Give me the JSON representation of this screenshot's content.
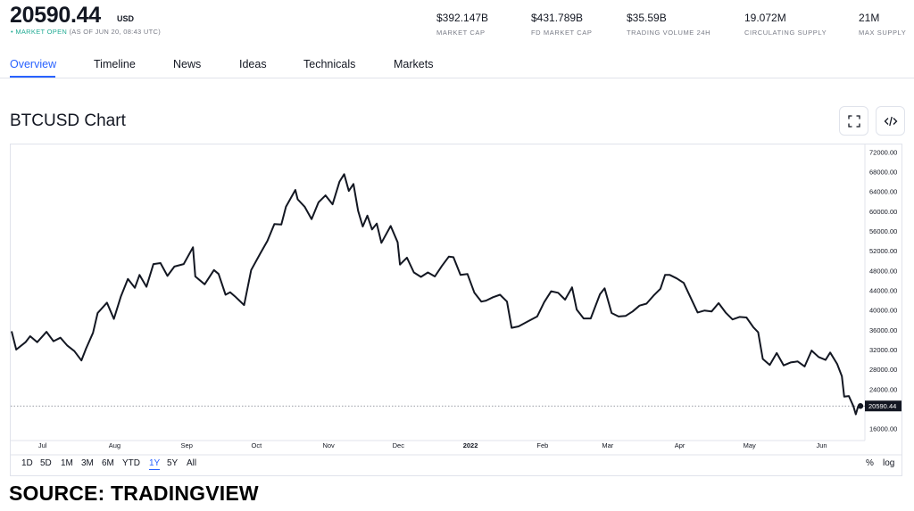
{
  "header": {
    "price": "20590.44",
    "currency": "USD",
    "market_status": "MARKET OPEN",
    "as_of": "(AS OF JUN 20, 08:43 UTC)"
  },
  "stats": [
    {
      "value": "$392.147B",
      "label": "MARKET CAP"
    },
    {
      "value": "$431.789B",
      "label": "FD MARKET CAP"
    },
    {
      "value": "$35.59B",
      "label": "TRADING VOLUME 24H"
    },
    {
      "value": "19.072M",
      "label": "CIRCULATING SUPPLY"
    },
    {
      "value": "21M",
      "label": "MAX SUPPLY"
    }
  ],
  "tabs": [
    "Overview",
    "Timeline",
    "News",
    "Ideas",
    "Technicals",
    "Markets"
  ],
  "chart_title": "BTCUSD Chart",
  "ranges": [
    "1D",
    "5D",
    "1M",
    "3M",
    "6M",
    "YTD",
    "1Y",
    "5Y",
    "All"
  ],
  "active_range": "1Y",
  "options": {
    "percent": "%",
    "log": "log"
  },
  "source": "SOURCE: TRADINGVIEW",
  "colors": {
    "accent": "#2962ff",
    "market_open": "#22ab94",
    "line": "#131722"
  },
  "chart_data": {
    "type": "line",
    "title": "BTCUSD Chart",
    "x_labels": [
      "Jul",
      "Aug",
      "Sep",
      "Oct",
      "Nov",
      "Dec",
      "2022",
      "Feb",
      "Mar",
      "Apr",
      "May",
      "Jun"
    ],
    "y_ticks": [
      "72000.00",
      "68000.00",
      "64000.00",
      "60000.00",
      "56000.00",
      "52000.00",
      "48000.00",
      "44000.00",
      "40000.00",
      "36000.00",
      "32000.00",
      "28000.00",
      "24000.00",
      "16000.00"
    ],
    "ylim": [
      14500,
      73500
    ],
    "last_value_label": "20590.44",
    "last_value": 20590.44,
    "x_range": [
      "2021-06-20",
      "2022-06-20"
    ],
    "series": [
      {
        "name": "BTCUSD",
        "points": [
          [
            "2021-06-20",
            35700
          ],
          [
            "2021-06-22",
            32000
          ],
          [
            "2021-06-26",
            33500
          ],
          [
            "2021-06-28",
            34700
          ],
          [
            "2021-07-01",
            33500
          ],
          [
            "2021-07-05",
            35600
          ],
          [
            "2021-07-08",
            33700
          ],
          [
            "2021-07-11",
            34400
          ],
          [
            "2021-07-14",
            32800
          ],
          [
            "2021-07-17",
            31700
          ],
          [
            "2021-07-20",
            29800
          ],
          [
            "2021-07-22",
            32200
          ],
          [
            "2021-07-25",
            35400
          ],
          [
            "2021-07-27",
            39400
          ],
          [
            "2021-07-31",
            41500
          ],
          [
            "2021-08-03",
            38200
          ],
          [
            "2021-08-06",
            42800
          ],
          [
            "2021-08-09",
            46300
          ],
          [
            "2021-08-12",
            44500
          ],
          [
            "2021-08-14",
            47100
          ],
          [
            "2021-08-17",
            44700
          ],
          [
            "2021-08-20",
            49300
          ],
          [
            "2021-08-23",
            49500
          ],
          [
            "2021-08-26",
            46900
          ],
          [
            "2021-08-29",
            48800
          ],
          [
            "2021-09-02",
            49300
          ],
          [
            "2021-09-06",
            52700
          ],
          [
            "2021-09-07",
            46800
          ],
          [
            "2021-09-11",
            45200
          ],
          [
            "2021-09-15",
            48100
          ],
          [
            "2021-09-17",
            47300
          ],
          [
            "2021-09-20",
            43100
          ],
          [
            "2021-09-22",
            43600
          ],
          [
            "2021-09-24",
            42800
          ],
          [
            "2021-09-28",
            41000
          ],
          [
            "2021-10-01",
            48100
          ],
          [
            "2021-10-05",
            51500
          ],
          [
            "2021-10-08",
            54000
          ],
          [
            "2021-10-11",
            57400
          ],
          [
            "2021-10-14",
            57300
          ],
          [
            "2021-10-16",
            60900
          ],
          [
            "2021-10-20",
            64300
          ],
          [
            "2021-10-21",
            62400
          ],
          [
            "2021-10-24",
            60900
          ],
          [
            "2021-10-27",
            58400
          ],
          [
            "2021-10-30",
            61800
          ],
          [
            "2021-11-02",
            63200
          ],
          [
            "2021-11-05",
            61400
          ],
          [
            "2021-11-08",
            66000
          ],
          [
            "2021-11-10",
            67500
          ],
          [
            "2021-11-12",
            64100
          ],
          [
            "2021-11-14",
            65500
          ],
          [
            "2021-11-16",
            60100
          ],
          [
            "2021-11-18",
            56900
          ],
          [
            "2021-11-20",
            59100
          ],
          [
            "2021-11-22",
            56300
          ],
          [
            "2021-11-24",
            57500
          ],
          [
            "2021-11-26",
            53600
          ],
          [
            "2021-11-30",
            57000
          ],
          [
            "2021-12-03",
            53700
          ],
          [
            "2021-12-04",
            49200
          ],
          [
            "2021-12-07",
            50600
          ],
          [
            "2021-12-10",
            47600
          ],
          [
            "2021-12-13",
            46700
          ],
          [
            "2021-12-16",
            47600
          ],
          [
            "2021-12-19",
            46800
          ],
          [
            "2021-12-22",
            48900
          ],
          [
            "2021-12-25",
            50800
          ],
          [
            "2021-12-27",
            50700
          ],
          [
            "2021-12-30",
            47100
          ],
          [
            "2022-01-02",
            47300
          ],
          [
            "2022-01-05",
            43500
          ],
          [
            "2022-01-08",
            41700
          ],
          [
            "2022-01-10",
            41900
          ],
          [
            "2022-01-13",
            42600
          ],
          [
            "2022-01-16",
            43100
          ],
          [
            "2022-01-19",
            41700
          ],
          [
            "2022-01-21",
            36400
          ],
          [
            "2022-01-24",
            36700
          ],
          [
            "2022-01-28",
            37700
          ],
          [
            "2022-02-01",
            38700
          ],
          [
            "2022-02-04",
            41600
          ],
          [
            "2022-02-07",
            43800
          ],
          [
            "2022-02-10",
            43500
          ],
          [
            "2022-02-13",
            42100
          ],
          [
            "2022-02-16",
            44600
          ],
          [
            "2022-02-18",
            40100
          ],
          [
            "2022-02-21",
            38300
          ],
          [
            "2022-02-24",
            38300
          ],
          [
            "2022-02-28",
            43200
          ],
          [
            "2022-03-02",
            44400
          ],
          [
            "2022-03-05",
            39400
          ],
          [
            "2022-03-08",
            38700
          ],
          [
            "2022-03-11",
            38800
          ],
          [
            "2022-03-14",
            39700
          ],
          [
            "2022-03-17",
            40900
          ],
          [
            "2022-03-20",
            41300
          ],
          [
            "2022-03-23",
            42900
          ],
          [
            "2022-03-26",
            44300
          ],
          [
            "2022-03-28",
            47100
          ],
          [
            "2022-03-30",
            47100
          ],
          [
            "2022-04-02",
            46400
          ],
          [
            "2022-04-05",
            45500
          ],
          [
            "2022-04-07",
            43500
          ],
          [
            "2022-04-11",
            39500
          ],
          [
            "2022-04-14",
            39900
          ],
          [
            "2022-04-17",
            39700
          ],
          [
            "2022-04-20",
            41400
          ],
          [
            "2022-04-23",
            39500
          ],
          [
            "2022-04-26",
            38100
          ],
          [
            "2022-04-29",
            38600
          ],
          [
            "2022-05-02",
            38500
          ],
          [
            "2022-05-05",
            36500
          ],
          [
            "2022-05-07",
            35500
          ],
          [
            "2022-05-09",
            30100
          ],
          [
            "2022-05-12",
            28900
          ],
          [
            "2022-05-15",
            31300
          ],
          [
            "2022-05-18",
            28800
          ],
          [
            "2022-05-21",
            29400
          ],
          [
            "2022-05-24",
            29600
          ],
          [
            "2022-05-27",
            28600
          ],
          [
            "2022-05-30",
            31800
          ],
          [
            "2022-06-02",
            30500
          ],
          [
            "2022-06-05",
            29900
          ],
          [
            "2022-06-07",
            31400
          ],
          [
            "2022-06-10",
            29100
          ],
          [
            "2022-06-12",
            26600
          ],
          [
            "2022-06-13",
            22500
          ],
          [
            "2022-06-15",
            22600
          ],
          [
            "2022-06-17",
            20500
          ],
          [
            "2022-06-18",
            18900
          ],
          [
            "2022-06-19",
            20500
          ],
          [
            "2022-06-20",
            20590
          ]
        ]
      }
    ]
  }
}
